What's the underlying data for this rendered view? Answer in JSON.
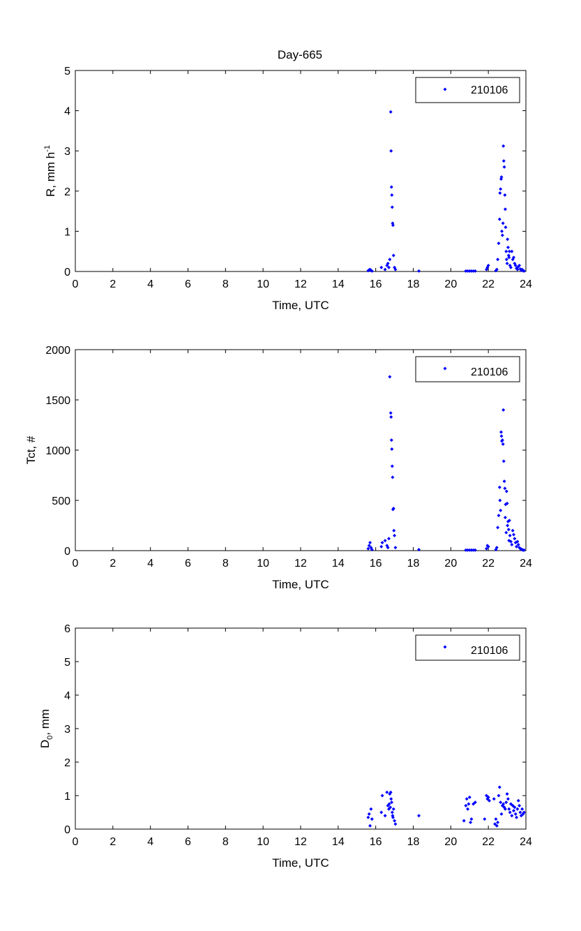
{
  "figure": {
    "title": "Day-665"
  },
  "chart_data": [
    {
      "type": "scatter",
      "title": "Day-665",
      "xlabel": "Time, UTC",
      "ylabel": "R, mm h",
      "ylabel_superscript": "-1",
      "xlim": [
        0,
        24
      ],
      "ylim": [
        0,
        5
      ],
      "xticks": [
        "0",
        "2",
        "4",
        "6",
        "8",
        "10",
        "12",
        "14",
        "16",
        "18",
        "20",
        "22",
        "24"
      ],
      "yticks": [
        "0",
        "1",
        "2",
        "3",
        "4",
        "5"
      ],
      "grid": false,
      "legend": {
        "position": "top-right",
        "entries": [
          "210106"
        ]
      },
      "color": "#0000ff",
      "series": [
        {
          "name": "210106",
          "x": [
            15.6,
            15.65,
            15.7,
            15.75,
            15.8,
            16.3,
            16.5,
            16.6,
            16.65,
            16.7,
            16.75,
            16.8,
            16.82,
            16.84,
            16.86,
            16.88,
            16.9,
            16.92,
            16.95,
            17.0,
            17.05,
            18.3,
            20.8,
            20.9,
            21.0,
            21.1,
            21.2,
            21.3,
            21.9,
            21.95,
            22.0,
            22.4,
            22.45,
            22.5,
            22.55,
            22.6,
            22.62,
            22.65,
            22.68,
            22.7,
            22.72,
            22.75,
            22.78,
            22.8,
            22.82,
            22.85,
            22.88,
            22.9,
            22.92,
            22.95,
            22.97,
            23.0,
            23.02,
            23.05,
            23.08,
            23.1,
            23.12,
            23.15,
            23.2,
            23.25,
            23.3,
            23.35,
            23.4,
            23.45,
            23.5,
            23.55,
            23.6,
            23.65,
            23.7,
            23.75,
            23.8,
            23.85,
            23.9
          ],
          "y": [
            0.02,
            0.04,
            0.05,
            0.03,
            0.01,
            0.1,
            0.05,
            0.15,
            0.2,
            0.1,
            0.3,
            3.97,
            3.0,
            2.1,
            1.9,
            1.6,
            1.2,
            1.15,
            0.4,
            0.1,
            0.05,
            0.01,
            0.01,
            0.01,
            0.01,
            0.01,
            0.01,
            0.01,
            0.05,
            0.1,
            0.15,
            0.02,
            0.05,
            0.3,
            0.7,
            1.3,
            1.95,
            2.05,
            2.3,
            2.35,
            1.0,
            0.9,
            1.2,
            3.12,
            2.75,
            2.6,
            1.9,
            1.55,
            1.1,
            0.5,
            0.3,
            0.2,
            0.8,
            0.6,
            0.4,
            0.35,
            0.5,
            0.15,
            0.1,
            0.5,
            0.3,
            0.35,
            0.2,
            0.15,
            0.08,
            0.05,
            0.12,
            0.15,
            0.06,
            0.03,
            0.05,
            0.02,
            0.01
          ]
        }
      ]
    },
    {
      "type": "scatter",
      "title": "",
      "xlabel": "Time, UTC",
      "ylabel": "Tct, #",
      "xlim": [
        0,
        24
      ],
      "ylim": [
        0,
        2000
      ],
      "xticks": [
        "0",
        "2",
        "4",
        "6",
        "8",
        "10",
        "12",
        "14",
        "16",
        "18",
        "20",
        "22",
        "24"
      ],
      "yticks": [
        "0",
        "500",
        "1000",
        "1500",
        "2000"
      ],
      "grid": false,
      "legend": {
        "position": "top-right",
        "entries": [
          "210106"
        ]
      },
      "color": "#0000ff",
      "series": [
        {
          "name": "210106",
          "x": [
            15.6,
            15.65,
            15.7,
            15.75,
            15.8,
            16.3,
            16.35,
            16.5,
            16.6,
            16.65,
            16.7,
            16.75,
            16.8,
            16.82,
            16.84,
            16.86,
            16.88,
            16.9,
            16.92,
            16.95,
            16.97,
            17.0,
            17.05,
            18.3,
            20.8,
            20.9,
            21.0,
            21.1,
            21.2,
            21.3,
            21.9,
            21.95,
            22.0,
            22.4,
            22.45,
            22.5,
            22.55,
            22.6,
            22.62,
            22.65,
            22.68,
            22.7,
            22.72,
            22.75,
            22.78,
            22.8,
            22.82,
            22.85,
            22.88,
            22.9,
            22.92,
            22.95,
            22.97,
            23.0,
            23.02,
            23.05,
            23.08,
            23.1,
            23.12,
            23.15,
            23.2,
            23.25,
            23.3,
            23.35,
            23.4,
            23.45,
            23.5,
            23.55,
            23.6,
            23.65,
            23.7,
            23.75,
            23.8,
            23.85,
            23.9
          ],
          "y": [
            20,
            50,
            80,
            30,
            10,
            40,
            80,
            100,
            50,
            30,
            120,
            1730,
            1370,
            1330,
            1100,
            1010,
            840,
            730,
            410,
            420,
            200,
            150,
            30,
            10,
            5,
            5,
            5,
            5,
            5,
            5,
            20,
            50,
            40,
            10,
            30,
            230,
            350,
            630,
            500,
            400,
            1180,
            1140,
            1090,
            1100,
            1060,
            1400,
            890,
            690,
            620,
            330,
            460,
            180,
            590,
            470,
            250,
            290,
            210,
            100,
            300,
            150,
            90,
            60,
            200,
            160,
            120,
            80,
            40,
            90,
            60,
            30,
            20,
            15,
            10,
            5,
            5
          ]
        }
      ]
    },
    {
      "type": "scatter",
      "title": "",
      "xlabel": "Time, UTC",
      "ylabel": "D",
      "ylabel_subscript": "0",
      "ylabel_suffix": ", mm",
      "xlim": [
        0,
        24
      ],
      "ylim": [
        0,
        6
      ],
      "xticks": [
        "0",
        "2",
        "4",
        "6",
        "8",
        "10",
        "12",
        "14",
        "16",
        "18",
        "20",
        "22",
        "24"
      ],
      "yticks": [
        "0",
        "1",
        "2",
        "3",
        "4",
        "5",
        "6"
      ],
      "grid": false,
      "legend": {
        "position": "top-right",
        "entries": [
          "210106"
        ]
      },
      "color": "#0000ff",
      "series": [
        {
          "name": "210106",
          "x": [
            15.6,
            15.65,
            15.7,
            15.75,
            15.8,
            16.3,
            16.35,
            16.5,
            16.6,
            16.65,
            16.7,
            16.72,
            16.75,
            16.78,
            16.8,
            16.82,
            16.85,
            16.88,
            16.9,
            16.92,
            16.95,
            17.0,
            17.05,
            18.3,
            20.7,
            20.8,
            20.85,
            20.9,
            20.95,
            21.0,
            21.05,
            21.1,
            21.2,
            21.3,
            21.8,
            21.9,
            21.95,
            22.0,
            22.05,
            22.3,
            22.35,
            22.4,
            22.45,
            22.5,
            22.55,
            22.6,
            22.65,
            22.7,
            22.75,
            22.8,
            22.85,
            22.9,
            22.95,
            23.0,
            23.05,
            23.1,
            23.15,
            23.2,
            23.25,
            23.3,
            23.35,
            23.4,
            23.45,
            23.5,
            23.55,
            23.6,
            23.65,
            23.7,
            23.75,
            23.8,
            23.85,
            23.9
          ],
          "y": [
            0.35,
            0.45,
            0.1,
            0.6,
            0.3,
            0.5,
            1.0,
            0.4,
            1.1,
            0.7,
            0.6,
            0.75,
            1.05,
            0.65,
            1.1,
            0.9,
            0.8,
            0.5,
            0.4,
            0.35,
            0.6,
            0.25,
            0.15,
            0.4,
            0.25,
            0.7,
            0.9,
            0.6,
            0.75,
            0.95,
            0.2,
            0.3,
            0.75,
            0.8,
            0.3,
            1.0,
            0.9,
            0.95,
            0.85,
            0.9,
            0.15,
            0.3,
            0.1,
            0.2,
            1.0,
            1.25,
            0.8,
            0.45,
            0.7,
            0.75,
            0.65,
            0.6,
            0.8,
            1.05,
            0.9,
            0.6,
            0.5,
            0.75,
            0.4,
            0.7,
            0.55,
            0.65,
            0.45,
            0.35,
            0.6,
            0.85,
            0.7,
            0.5,
            0.4,
            0.6,
            0.45,
            0.5
          ]
        }
      ]
    }
  ]
}
